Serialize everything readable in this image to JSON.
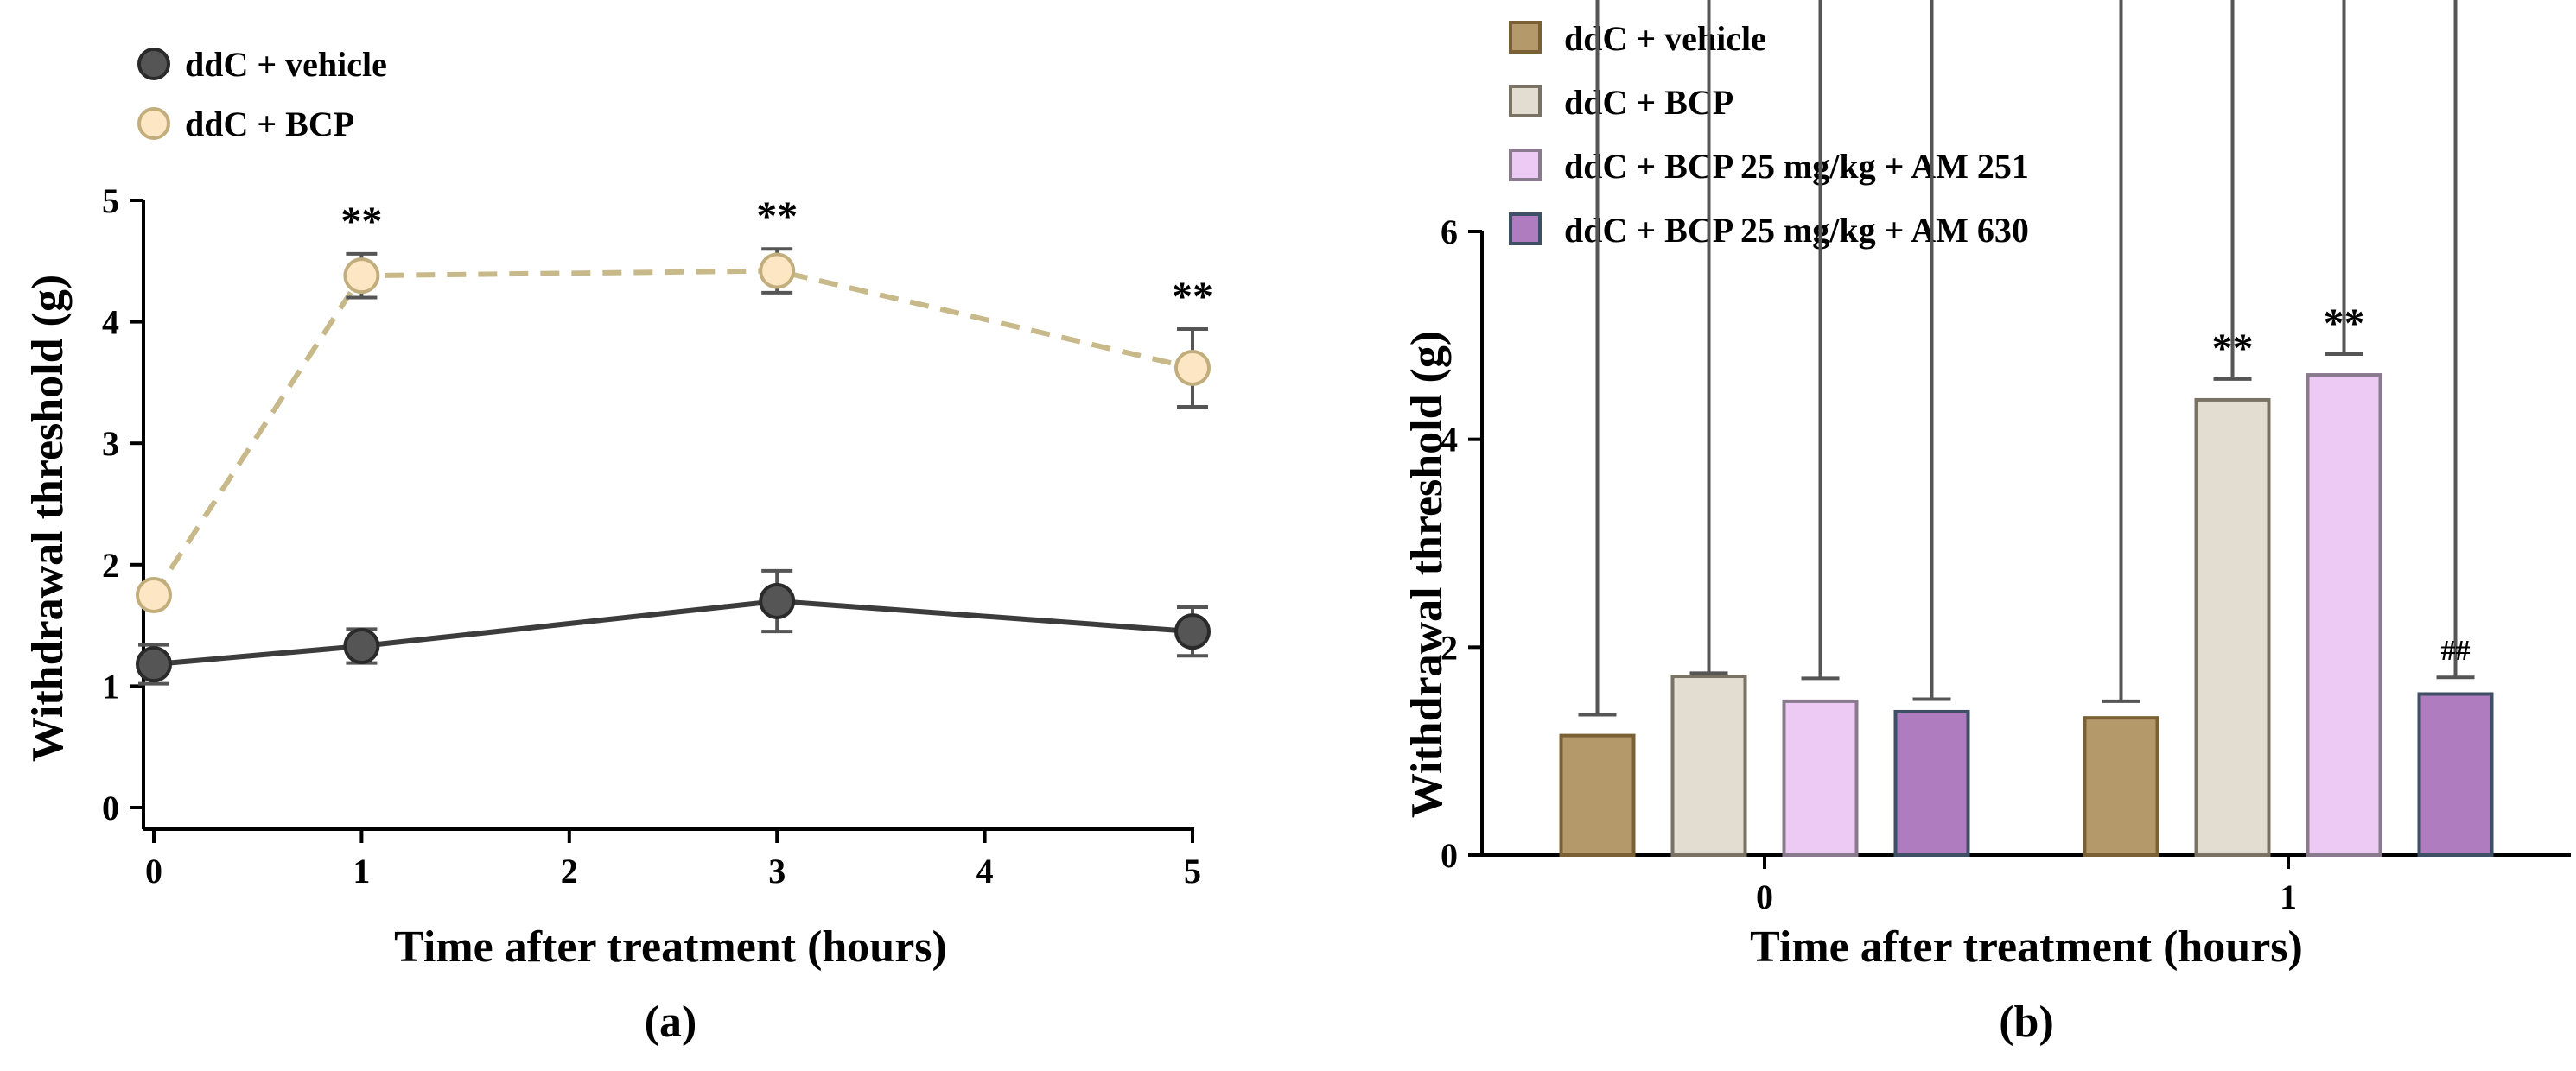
{
  "colors": {
    "veh_line": "#3c3c3c",
    "veh_fill": "#555555",
    "veh_stroke": "#2a2a2a",
    "bcp_line": "#c8b98a",
    "bcp_fill": "#fde6c3",
    "bcp_stroke": "#c2ae7c",
    "err": "#555555",
    "bar_vehicle": "#b49a6a",
    "bar_vehicle_stroke": "#7a6034",
    "bar_bcp": "#e2ddd0",
    "bar_bcp_stroke": "#7a7365",
    "bar_am251": "#eccaf4",
    "bar_am251_stroke": "#8a7a8e",
    "bar_am630": "#b07cc0",
    "bar_am630_stroke": "#3e4f66"
  },
  "chart_data": [
    {
      "id": "a",
      "type": "line",
      "panel_label": "(a)",
      "xlabel": "Time after treatment  (hours)",
      "ylabel": "Withdrawal threshold (g)",
      "xlim": [
        0,
        5
      ],
      "ylim": [
        0,
        5
      ],
      "xticks": [
        0,
        1,
        2,
        3,
        4,
        5
      ],
      "yticks": [
        0,
        1,
        2,
        3,
        4,
        5
      ],
      "legend_position": "top-left",
      "series": [
        {
          "name": "ddC + vehicle",
          "style": "solid",
          "x": [
            0,
            1,
            3,
            5
          ],
          "y": [
            1.18,
            1.33,
            1.7,
            1.45
          ],
          "err": [
            0.16,
            0.14,
            0.25,
            0.2
          ],
          "annotations": [
            "",
            "",
            "",
            ""
          ]
        },
        {
          "name": "ddC + BCP",
          "style": "dashed",
          "x": [
            0,
            1,
            3,
            5
          ],
          "y": [
            1.75,
            4.38,
            4.42,
            3.62
          ],
          "err": [
            0.05,
            0.18,
            0.18,
            0.32
          ],
          "annotations": [
            "",
            "**",
            "**",
            "**"
          ]
        }
      ]
    },
    {
      "id": "b",
      "type": "bar",
      "panel_label": "(b)",
      "xlabel": "Time after treatment  (hours)",
      "ylabel": "Withdrawal threshold (g)",
      "categories": [
        "0",
        "1"
      ],
      "ylim": [
        0,
        6
      ],
      "yticks": [
        0,
        2,
        4,
        6
      ],
      "legend_position": "top-left",
      "series": [
        {
          "name": "ddC + vehicle",
          "values": [
            1.15,
            1.32
          ],
          "err": [
            0.2,
            0.16
          ],
          "annotations": [
            "",
            ""
          ]
        },
        {
          "name": "ddC + BCP",
          "values": [
            1.72,
            4.38
          ],
          "err": [
            0.03,
            0.2
          ],
          "annotations": [
            "",
            "**"
          ]
        },
        {
          "name": "ddC + BCP 25 mg/kg + AM 251",
          "values": [
            1.48,
            4.62
          ],
          "err": [
            0.22,
            0.2
          ],
          "annotations": [
            "",
            "**"
          ]
        },
        {
          "name": "ddC + BCP 25 mg/kg + AM 630",
          "values": [
            1.38,
            1.55
          ],
          "err": [
            0.12,
            0.16
          ],
          "annotations": [
            "",
            "##"
          ]
        }
      ]
    }
  ]
}
